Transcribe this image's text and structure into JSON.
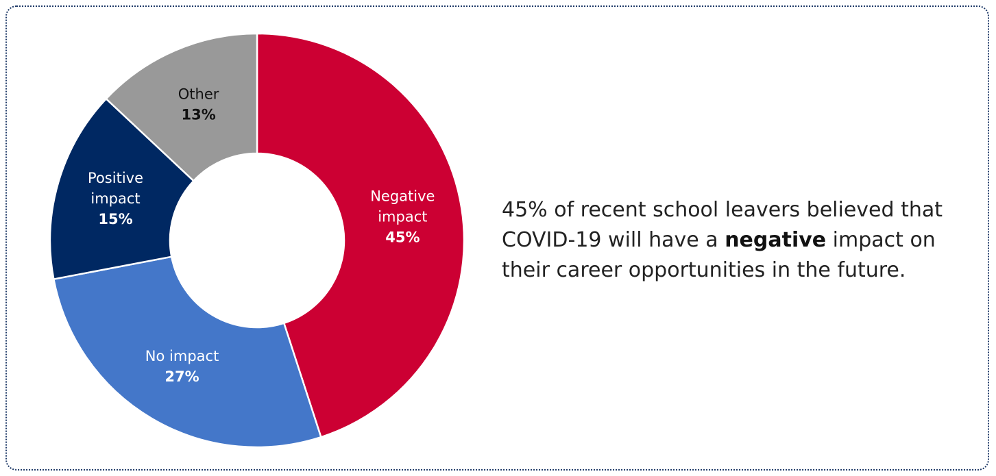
{
  "chart_data": {
    "type": "pie",
    "variant": "donut",
    "categories": [
      "Negative impact",
      "No impact",
      "Positive impact",
      "Other"
    ],
    "values": [
      45,
      27,
      15,
      13
    ],
    "value_labels": [
      "45%",
      "27%",
      "15%",
      "13%"
    ],
    "label_lines": [
      [
        "Negative",
        "impact"
      ],
      [
        "No impact"
      ],
      [
        "Positive",
        "impact"
      ],
      [
        "Other"
      ]
    ],
    "colors": [
      "#cc0033",
      "#4477c9",
      "#002862",
      "#999999"
    ],
    "label_colors": [
      "#ffffff",
      "#ffffff",
      "#ffffff",
      "#111111"
    ],
    "start_angle": "12 o'clock",
    "direction": "clockwise",
    "legend": "none (labels inside slices)"
  },
  "caption": {
    "before": "45% of recent school leavers believed that COVID-19 will have a ",
    "emphasis": "negative",
    "after": " impact on their career opportunities in the future."
  },
  "colors": {
    "frame_border": "#1f3a68",
    "text": "#222222"
  }
}
